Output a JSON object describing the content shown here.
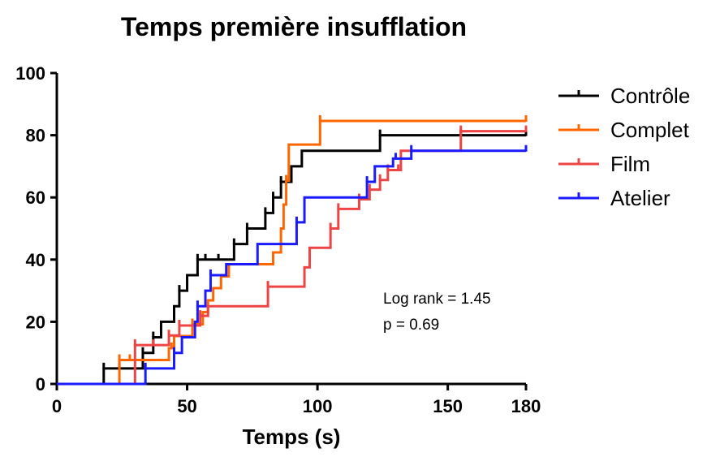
{
  "chart_data": {
    "type": "line",
    "subtype": "kaplan-meier-step",
    "title": "Temps première insufflation",
    "xlabel": "Temps (s)",
    "ylabel": "",
    "xlim": [
      0,
      180
    ],
    "ylim": [
      0,
      100
    ],
    "x_ticks": [
      0,
      50,
      100,
      150,
      180
    ],
    "y_ticks": [
      0,
      20,
      40,
      60,
      80,
      100
    ],
    "grid": false,
    "legend_position": "right",
    "annotations": [
      "Log rank = 1.45",
      "p = 0.69"
    ],
    "series": [
      {
        "name": "Contrôle",
        "color": "#000000",
        "points": [
          [
            0,
            0
          ],
          [
            18,
            5
          ],
          [
            33,
            10
          ],
          [
            37,
            15
          ],
          [
            40,
            20
          ],
          [
            45,
            25
          ],
          [
            47,
            30
          ],
          [
            50,
            35
          ],
          [
            54,
            40
          ],
          [
            62,
            40
          ],
          [
            68,
            45
          ],
          [
            73,
            50
          ],
          [
            80,
            55
          ],
          [
            83,
            60
          ],
          [
            86,
            65
          ],
          [
            90,
            70
          ],
          [
            94,
            75
          ],
          [
            124,
            80
          ],
          [
            180,
            80
          ]
        ],
        "censored": [
          18,
          24,
          33,
          37,
          47,
          54,
          57,
          62,
          68,
          73,
          80,
          83,
          86,
          124,
          155,
          180
        ]
      },
      {
        "name": "Complet",
        "color": "#ff6600",
        "points": [
          [
            0,
            0
          ],
          [
            24,
            7.7
          ],
          [
            43,
            11.5
          ],
          [
            45,
            15.4
          ],
          [
            52,
            19.2
          ],
          [
            56,
            23.1
          ],
          [
            58,
            26.9
          ],
          [
            60,
            30.8
          ],
          [
            63,
            34.6
          ],
          [
            66,
            38.5
          ],
          [
            83,
            42.3
          ],
          [
            86,
            50
          ],
          [
            87,
            57.7
          ],
          [
            88,
            65.4
          ],
          [
            89,
            77
          ],
          [
            101,
            84.6
          ],
          [
            180,
            84.6
          ]
        ],
        "censored": [
          24,
          28,
          44,
          52,
          88,
          101,
          180
        ]
      },
      {
        "name": "Film",
        "color": "#ee4444",
        "points": [
          [
            0,
            0
          ],
          [
            30,
            12.5
          ],
          [
            43,
            15.6
          ],
          [
            47,
            18.8
          ],
          [
            55,
            21.9
          ],
          [
            58,
            25
          ],
          [
            81,
            31.3
          ],
          [
            95,
            37.5
          ],
          [
            97,
            43.8
          ],
          [
            105,
            50
          ],
          [
            108,
            56.3
          ],
          [
            116,
            59.4
          ],
          [
            120,
            62.5
          ],
          [
            124,
            65.6
          ],
          [
            127,
            68.8
          ],
          [
            132,
            75
          ],
          [
            155,
            81.3
          ],
          [
            180,
            81.3
          ]
        ],
        "censored": [
          30,
          37,
          43,
          47,
          55,
          81,
          105,
          108,
          116,
          120,
          124,
          127,
          131,
          155,
          180
        ]
      },
      {
        "name": "Atelier",
        "color": "#1a1aff",
        "points": [
          [
            0,
            0
          ],
          [
            34,
            5
          ],
          [
            45,
            10
          ],
          [
            48,
            15
          ],
          [
            53,
            20
          ],
          [
            54,
            25
          ],
          [
            57,
            30
          ],
          [
            59,
            35
          ],
          [
            65,
            38.5
          ],
          [
            77,
            45
          ],
          [
            92,
            52
          ],
          [
            95,
            60
          ],
          [
            119,
            65
          ],
          [
            122,
            70
          ],
          [
            129,
            72.5
          ],
          [
            136,
            75
          ],
          [
            180,
            75
          ]
        ],
        "censored": [
          34,
          45,
          54,
          59,
          92,
          119,
          130,
          136,
          180
        ]
      }
    ]
  }
}
